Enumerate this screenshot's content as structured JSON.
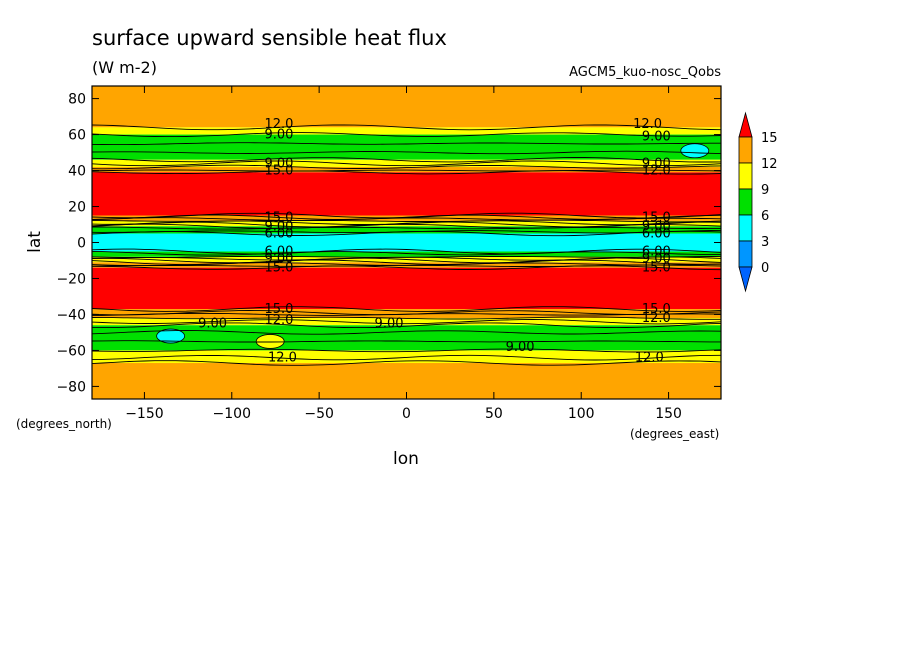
{
  "chart_data": {
    "type": "heatmap",
    "title": "surface upward sensible heat flux",
    "units": "(W m-2)",
    "run_label": "AGCM5_kuo-nosc_Qobs",
    "xlabel": "lon",
    "ylabel": "lat",
    "x_units_label": "(degrees_east)",
    "y_units_label": "(degrees_north)",
    "xlim": [
      -180,
      180
    ],
    "ylim": [
      -87,
      87
    ],
    "x_ticks": [
      -150,
      -100,
      -50,
      0,
      50,
      100,
      150
    ],
    "y_ticks": [
      80,
      60,
      40,
      20,
      0,
      -20,
      -40,
      -60,
      -80
    ],
    "colorbar": {
      "labels": [
        "15",
        "12",
        "9",
        "6",
        "3",
        "0"
      ],
      "bins": [
        {
          "min": 15,
          "max": null,
          "color": "#ff0000"
        },
        {
          "min": 12,
          "max": 15,
          "color": "#ffa500"
        },
        {
          "min": 9,
          "max": 12,
          "color": "#ffff00"
        },
        {
          "min": 6,
          "max": 9,
          "color": "#00e000"
        },
        {
          "min": 3,
          "max": 6,
          "color": "#00ffff"
        },
        {
          "min": 0,
          "max": 3,
          "color": "#0096ff"
        },
        {
          "min": null,
          "max": 0,
          "color": "#0064ff"
        }
      ]
    },
    "bands": [
      {
        "lat_top": 87,
        "lat_bottom": 64,
        "value_bin": "12-15"
      },
      {
        "lat_top": 64,
        "lat_bottom": 60,
        "value_bin": "9-12"
      },
      {
        "lat_top": 60,
        "lat_bottom": 46,
        "value_bin": "6-9"
      },
      {
        "lat_top": 46,
        "lat_bottom": 42,
        "value_bin": "9-12"
      },
      {
        "lat_top": 42,
        "lat_bottom": 39,
        "value_bin": "12-15"
      },
      {
        "lat_top": 39,
        "lat_bottom": 15,
        "value_bin": ">15"
      },
      {
        "lat_top": 15,
        "lat_bottom": 12,
        "value_bin": "12-15"
      },
      {
        "lat_top": 12,
        "lat_bottom": 9,
        "value_bin": "9-12"
      },
      {
        "lat_top": 9,
        "lat_bottom": 5,
        "value_bin": "6-9"
      },
      {
        "lat_top": 5,
        "lat_bottom": -5,
        "value_bin": "3-6"
      },
      {
        "lat_top": -5,
        "lat_bottom": -8,
        "value_bin": "6-9"
      },
      {
        "lat_top": -8,
        "lat_bottom": -11,
        "value_bin": "9-12"
      },
      {
        "lat_top": -11,
        "lat_bottom": -14,
        "value_bin": "12-15"
      },
      {
        "lat_top": -14,
        "lat_bottom": -37,
        "value_bin": ">15"
      },
      {
        "lat_top": -37,
        "lat_bottom": -42,
        "value_bin": "12-15"
      },
      {
        "lat_top": -42,
        "lat_bottom": -46,
        "value_bin": "9-12"
      },
      {
        "lat_top": -46,
        "lat_bottom": -60,
        "value_bin": "6-9"
      },
      {
        "lat_top": -60,
        "lat_bottom": -67,
        "value_bin": "9-12"
      },
      {
        "lat_top": -67,
        "lat_bottom": -87,
        "value_bin": "12-15"
      }
    ],
    "contour_lines_lat": [
      64,
      60,
      55,
      50,
      46,
      44,
      42,
      40,
      39,
      15,
      14,
      13,
      12,
      11,
      10,
      9,
      8,
      6,
      5,
      -5,
      -6,
      -8,
      -9,
      -10,
      -11,
      -12,
      -13,
      -14,
      -37,
      -39,
      -40,
      -42,
      -44,
      -46,
      -50,
      -55,
      -60,
      -64,
      -67
    ],
    "patches": [
      {
        "lon": 165,
        "lat": 51,
        "value_bin": "3-6"
      },
      {
        "lon": -135,
        "lat": -52,
        "value_bin": "3-6"
      },
      {
        "lon": -78,
        "lat": -55,
        "value_bin": "9-12"
      }
    ],
    "contour_labels": [
      {
        "text": "12.0",
        "lon": -73,
        "lat": 66
      },
      {
        "text": "9.00",
        "lon": -73,
        "lat": 60
      },
      {
        "text": "9.00",
        "lon": -73,
        "lat": 44
      },
      {
        "text": "15.0",
        "lon": -73,
        "lat": 40
      },
      {
        "text": "15.0",
        "lon": -73,
        "lat": 14
      },
      {
        "text": "9.00",
        "lon": -73,
        "lat": 9
      },
      {
        "text": "6.00",
        "lon": -73,
        "lat": 5
      },
      {
        "text": "6.00",
        "lon": -73,
        "lat": -5
      },
      {
        "text": "9.00",
        "lon": -73,
        "lat": -9
      },
      {
        "text": "15.0",
        "lon": -73,
        "lat": -14
      },
      {
        "text": "15.0",
        "lon": -73,
        "lat": -37
      },
      {
        "text": "12.0",
        "lon": -73,
        "lat": -43
      },
      {
        "text": "12.0",
        "lon": 138,
        "lat": 66
      },
      {
        "text": "9.00",
        "lon": 143,
        "lat": 59
      },
      {
        "text": "9.00",
        "lon": 143,
        "lat": 44
      },
      {
        "text": "12.0",
        "lon": 143,
        "lat": 40
      },
      {
        "text": "15.0",
        "lon": 143,
        "lat": 14
      },
      {
        "text": "9.00",
        "lon": 143,
        "lat": 9
      },
      {
        "text": "6.00",
        "lon": 143,
        "lat": 5
      },
      {
        "text": "6.00",
        "lon": 143,
        "lat": -5
      },
      {
        "text": "9.00",
        "lon": 143,
        "lat": -9
      },
      {
        "text": "15.0",
        "lon": 143,
        "lat": -14
      },
      {
        "text": "15.0",
        "lon": 143,
        "lat": -37
      },
      {
        "text": "12.0",
        "lon": 143,
        "lat": -42
      },
      {
        "text": "9.00",
        "lon": -111,
        "lat": -45
      },
      {
        "text": "9.00",
        "lon": -10,
        "lat": -45
      },
      {
        "text": "9.00",
        "lon": 65,
        "lat": -58
      },
      {
        "text": "12.0",
        "lon": -71,
        "lat": -64
      },
      {
        "text": "12.0",
        "lon": 139,
        "lat": -64
      }
    ]
  }
}
